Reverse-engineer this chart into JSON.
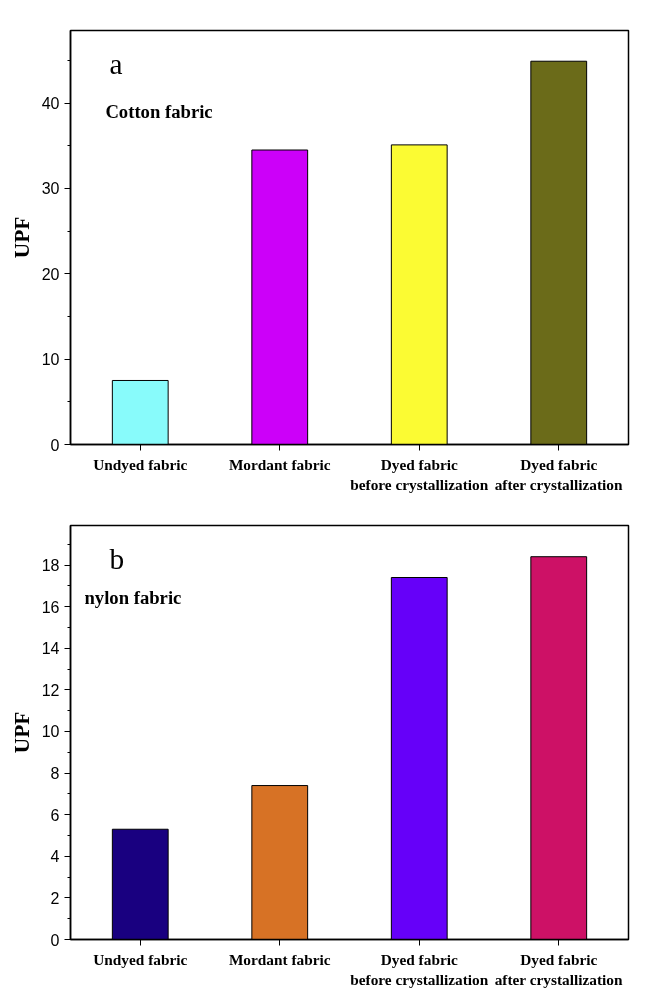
{
  "chart_data": [
    {
      "type": "bar",
      "annotations": [
        "a",
        "Cotton fabric"
      ],
      "ylabel": "UPF",
      "categories": [
        "Undyed fabric",
        "Mordant fabric",
        "Dyed fabric\nbefore crystallization",
        "Dyed fabric\nafter crystallization"
      ],
      "values": [
        7.5,
        34.5,
        35.1,
        44.9
      ],
      "colors": [
        "#88fbfb",
        "#cc00f9",
        "#fbfb33",
        "#6b6b19"
      ],
      "ylim": [
        0,
        48.5
      ],
      "yticks": [
        0,
        10,
        20,
        30,
        40
      ],
      "grid": false
    },
    {
      "type": "bar",
      "annotations": [
        "b",
        "nylon fabric"
      ],
      "ylabel": "UPF",
      "categories": [
        "Undyed fabric",
        "Mordant fabric",
        "Dyed fabric\nbefore crystallization",
        "Dyed fabric\nafter crystallization"
      ],
      "values": [
        5.3,
        7.4,
        17.4,
        18.4
      ],
      "colors": [
        "#190080",
        "#d77225",
        "#6600f9",
        "#cd1166"
      ],
      "ylim": [
        0,
        19.9
      ],
      "yticks": [
        0,
        2,
        4,
        6,
        8,
        10,
        12,
        14,
        16,
        18
      ],
      "grid": false
    }
  ]
}
